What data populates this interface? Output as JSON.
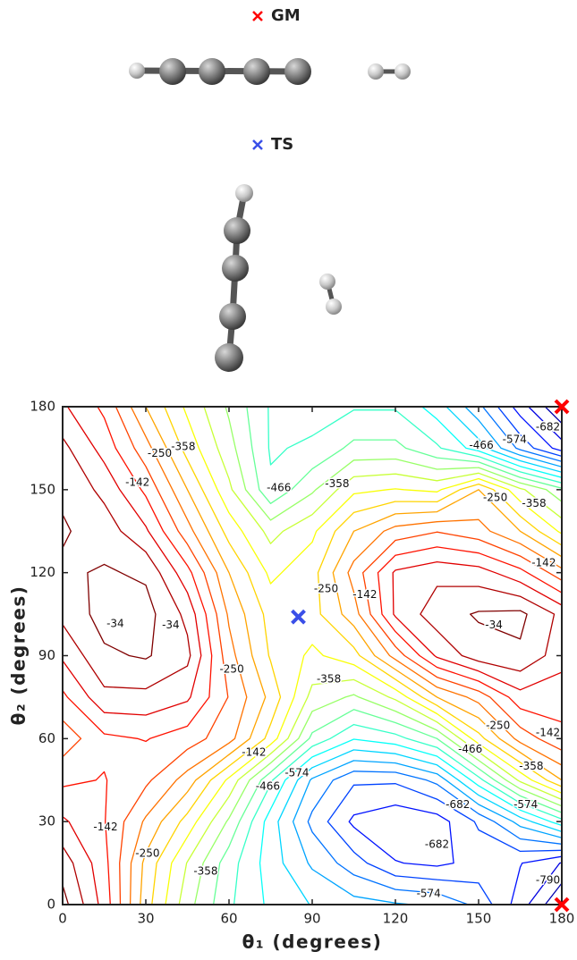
{
  "chart_data": {
    "type": "contour",
    "xlabel": "θ₁ (degrees)",
    "ylabel": "θ₂ (degrees)",
    "xlim": [
      0,
      180
    ],
    "ylim": [
      0,
      180
    ],
    "xticks": [
      0,
      30,
      60,
      90,
      120,
      150,
      180
    ],
    "yticks": [
      0,
      30,
      60,
      90,
      120,
      150,
      180
    ],
    "colormap": "jet",
    "x": [
      0,
      15,
      30,
      45,
      60,
      75,
      90,
      105,
      120,
      135,
      150,
      165,
      180
    ],
    "y": [
      0,
      15,
      30,
      45,
      60,
      75,
      90,
      105,
      120,
      135,
      150,
      165,
      180
    ],
    "z": [
      [
        -20,
        -120,
        -270,
        -380,
        -460,
        -510,
        -540,
        -560,
        -570,
        -580,
        -620,
        -700,
        -790
      ],
      [
        -50,
        -130,
        -260,
        -360,
        -450,
        -520,
        -580,
        -630,
        -680,
        -690,
        -670,
        -680,
        -720
      ],
      [
        -100,
        -140,
        -220,
        -300,
        -400,
        -520,
        -620,
        -690,
        -710,
        -700,
        -640,
        -560,
        -480
      ],
      [
        -150,
        -140,
        -170,
        -230,
        -330,
        -460,
        -580,
        -640,
        -640,
        -600,
        -480,
        -350,
        -250
      ],
      [
        -200,
        -150,
        -140,
        -160,
        -200,
        -300,
        -440,
        -500,
        -480,
        -430,
        -300,
        -200,
        -150
      ],
      [
        -150,
        -80,
        -80,
        -100,
        -180,
        -260,
        -370,
        -400,
        -350,
        -250,
        -200,
        -120,
        -130
      ],
      [
        -100,
        -40,
        -30,
        -60,
        -200,
        -290,
        -330,
        -300,
        -200,
        -100,
        -50,
        -40,
        -90
      ],
      [
        -60,
        -20,
        -20,
        -80,
        -220,
        -300,
        -300,
        -230,
        -100,
        -50,
        -30,
        -25,
        -80
      ],
      [
        -40,
        -30,
        -40,
        -130,
        -250,
        -330,
        -300,
        -200,
        -100,
        -80,
        -90,
        -130,
        -200
      ],
      [
        -30,
        -50,
        -100,
        -200,
        -300,
        -370,
        -330,
        -250,
        -200,
        -180,
        -200,
        -250,
        -330
      ],
      [
        -40,
        -80,
        -150,
        -250,
        -350,
        -460,
        -400,
        -330,
        -320,
        -330,
        -250,
        -350,
        -420
      ],
      [
        -60,
        -120,
        -200,
        -300,
        -380,
        -470,
        -460,
        -420,
        -420,
        -460,
        -520,
        -620,
        -700
      ],
      [
        -100,
        -150,
        -250,
        -330,
        -400,
        -470,
        -480,
        -470,
        -470,
        -520,
        -600,
        -700,
        -790
      ]
    ],
    "levels": [
      -34,
      -70,
      -106,
      -142,
      -178,
      -214,
      -250,
      -286,
      -322,
      -358,
      -394,
      -430,
      -466,
      -502,
      -538,
      -574,
      -610,
      -646,
      -682,
      -718,
      -754,
      -790
    ],
    "contour_labels": [
      {
        "level": -358,
        "x": 43.5,
        "y": 165.5
      },
      {
        "level": -250,
        "x": 35,
        "y": 163
      },
      {
        "level": -142,
        "x": 27,
        "y": 152.5
      },
      {
        "level": -466,
        "x": 78,
        "y": 150.6
      },
      {
        "level": -358,
        "x": 99,
        "y": 152
      },
      {
        "level": -466,
        "x": 151,
        "y": 166
      },
      {
        "level": -574,
        "x": 163,
        "y": 168
      },
      {
        "level": -682,
        "x": 175,
        "y": 172.6
      },
      {
        "level": -250,
        "x": 156,
        "y": 147
      },
      {
        "level": -358,
        "x": 170,
        "y": 145
      },
      {
        "level": -142,
        "x": 173.5,
        "y": 123.5
      },
      {
        "level": -250,
        "x": 95,
        "y": 114
      },
      {
        "level": -142,
        "x": 109,
        "y": 112
      },
      {
        "level": -34,
        "x": 19,
        "y": 101.5
      },
      {
        "level": -34,
        "x": 39,
        "y": 101
      },
      {
        "level": -34,
        "x": 155.5,
        "y": 101
      },
      {
        "level": -250,
        "x": 61,
        "y": 85
      },
      {
        "level": -358,
        "x": 96,
        "y": 81.5
      },
      {
        "level": -142,
        "x": 69,
        "y": 55
      },
      {
        "level": -250,
        "x": 157,
        "y": 64.6
      },
      {
        "level": -142,
        "x": 175,
        "y": 62
      },
      {
        "level": -466,
        "x": 147,
        "y": 56
      },
      {
        "level": -358,
        "x": 169,
        "y": 50
      },
      {
        "level": -466,
        "x": 74,
        "y": 42.7
      },
      {
        "level": -574,
        "x": 84.5,
        "y": 47.5
      },
      {
        "level": -682,
        "x": 142.5,
        "y": 36
      },
      {
        "level": -574,
        "x": 167,
        "y": 36
      },
      {
        "level": -142,
        "x": 15.5,
        "y": 28
      },
      {
        "level": -250,
        "x": 30.6,
        "y": 18.4
      },
      {
        "level": -358,
        "x": 51.6,
        "y": 12
      },
      {
        "level": -682,
        "x": 135,
        "y": 21.7
      },
      {
        "level": -574,
        "x": 132,
        "y": 3.9
      },
      {
        "level": -790,
        "x": 175,
        "y": 8.7
      }
    ],
    "markers": [
      {
        "name": "GM",
        "color": "#ff0000",
        "x": [
          180,
          180
        ],
        "y": [
          180,
          0
        ]
      },
      {
        "name": "TS",
        "color": "#3a4fe8",
        "x": [
          85
        ],
        "y": [
          104
        ]
      }
    ]
  }
}
